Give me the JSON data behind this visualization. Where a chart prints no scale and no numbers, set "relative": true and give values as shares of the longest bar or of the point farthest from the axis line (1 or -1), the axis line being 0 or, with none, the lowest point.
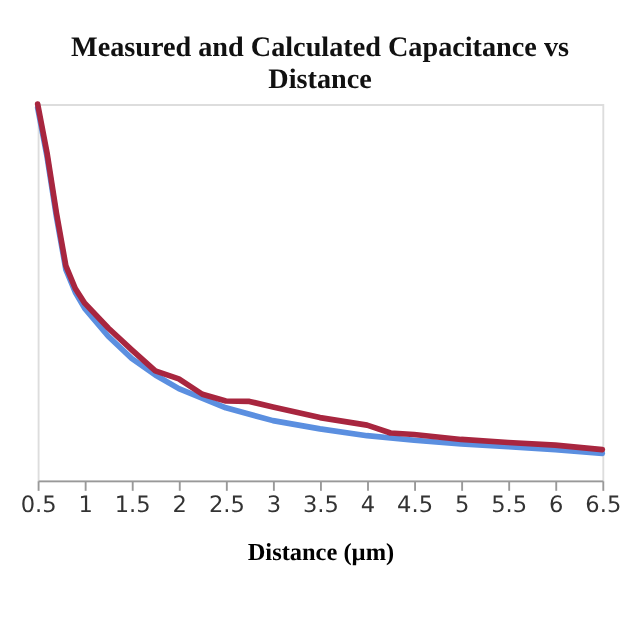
{
  "chart_data": {
    "type": "line",
    "title": "Measured and Calculated Capacitance vs Distance",
    "xlabel": "Distance (µm)",
    "relative": true,
    "xlim": [
      0.5,
      6.5
    ],
    "xticks": [
      0.5,
      1,
      1.5,
      2,
      2.5,
      3,
      3.5,
      4,
      4.5,
      5,
      5.5,
      6,
      6.5
    ],
    "grid": false,
    "line_style": "solid",
    "marker": "none",
    "series": [
      {
        "color": "#5b8fe0",
        "x": [
          0.5,
          0.6,
          0.7,
          0.8,
          0.9,
          1,
          1.25,
          1.5,
          1.75,
          2,
          2.5,
          3,
          3.5,
          4,
          4.5,
          5,
          5.5,
          6,
          6.5
        ],
        "values": [
          0.99,
          0.86,
          0.7,
          0.56,
          0.5,
          0.457,
          0.383,
          0.324,
          0.28,
          0.244,
          0.193,
          0.159,
          0.137,
          0.119,
          0.107,
          0.097,
          0.09,
          0.082,
          0.072
        ]
      },
      {
        "color": "#a8263f",
        "x": [
          0.5,
          0.6,
          0.7,
          0.8,
          0.9,
          1,
          1.25,
          1.5,
          1.75,
          2,
          2.25,
          2.5,
          2.75,
          3,
          3.5,
          4,
          4.25,
          4.5,
          5,
          5.5,
          6,
          6.5
        ],
        "values": [
          1.0,
          0.87,
          0.71,
          0.57,
          0.51,
          0.471,
          0.405,
          0.347,
          0.291,
          0.27,
          0.229,
          0.211,
          0.21,
          0.195,
          0.167,
          0.147,
          0.126,
          0.122,
          0.109,
          0.101,
          0.094,
          0.082
        ]
      }
    ]
  }
}
